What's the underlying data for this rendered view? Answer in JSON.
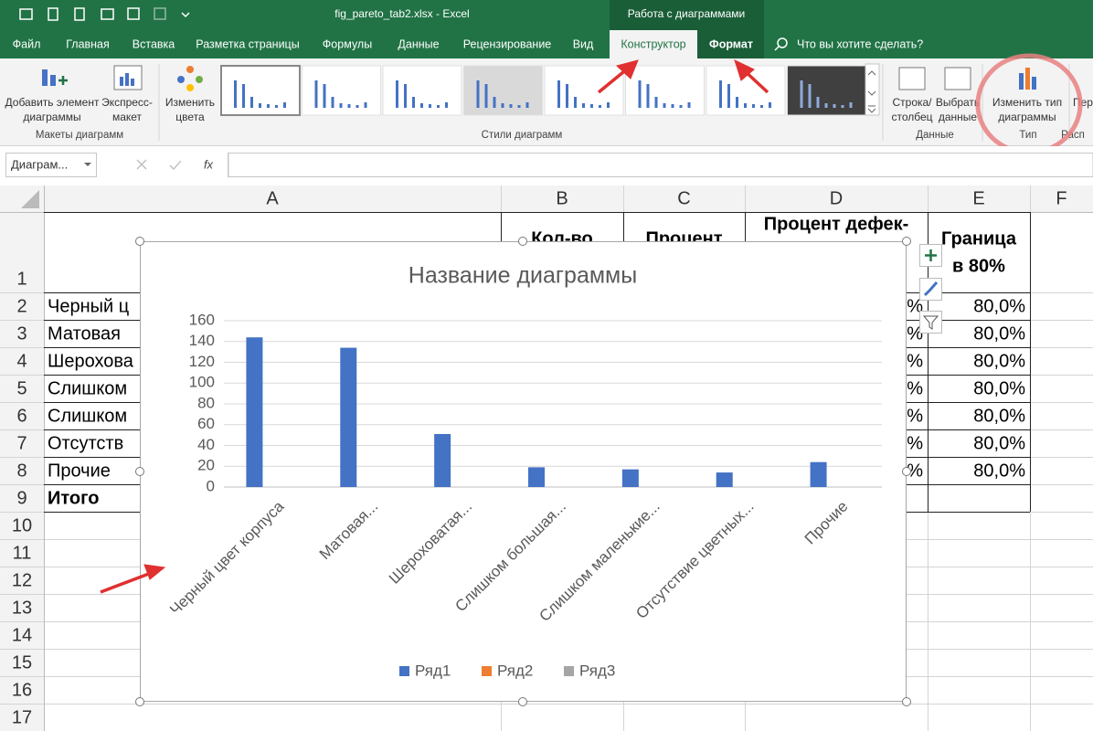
{
  "title_bar": {
    "title": "fig_pareto_tab2.xlsx  -  Excel",
    "context_tab": "Работа с диаграммами"
  },
  "tabs": [
    "Файл",
    "Главная",
    "Вставка",
    "Разметка страницы",
    "Формулы",
    "Данные",
    "Рецензирование",
    "Вид",
    "Конструктор",
    "Формат"
  ],
  "search": "Что вы хотите сделать?",
  "ribbon": {
    "groups": [
      {
        "label": "Макеты диаграмм",
        "buttons": [
          [
            "Добавить элемент",
            "диаграммы"
          ],
          [
            "Экспресс-",
            "макет"
          ]
        ]
      },
      {
        "label": "Стили диаграмм",
        "buttons": [
          [
            "Изменить",
            "цвета"
          ]
        ]
      },
      {
        "label": "Данные",
        "buttons": [
          [
            "Строка/",
            "столбец"
          ],
          [
            "Выбрать",
            "данные"
          ]
        ]
      },
      {
        "label": "Тип",
        "buttons": [
          [
            "Изменить тип",
            "диаграммы"
          ]
        ]
      },
      {
        "label": "Расп",
        "buttons": [
          [
            "Пер"
          ]
        ]
      }
    ]
  },
  "formula_bar": {
    "name_box": "Диаграм...",
    "fx": "fx"
  },
  "sheet": {
    "columns": [
      "A",
      "B",
      "C",
      "D",
      "E",
      "F"
    ],
    "rows": [
      1,
      2,
      3,
      4,
      5,
      6,
      7,
      8,
      9,
      10,
      11,
      12,
      13,
      14,
      15,
      16,
      17
    ],
    "cells": {
      "B1": "Кол-во",
      "C1": "Процент",
      "D1": "Процент дефек-",
      "E1": [
        "Граница",
        "в 80%"
      ],
      "A2": "Черный ц",
      "A3": "Матовая",
      "A4": "Шерохова",
      "A5": "Слишком",
      "A6": "Слишком",
      "A7": "Отсутств",
      "A8": "Прочие",
      "A9": "Итого",
      "D2": "%",
      "D3": "%",
      "D4": "%",
      "D5": "%",
      "D6": "%",
      "D7": "%",
      "D8": "%",
      "E2": "80,0%",
      "E3": "80,0%",
      "E4": "80,0%",
      "E5": "80,0%",
      "E6": "80,0%",
      "E7": "80,0%",
      "E8": "80,0%"
    },
    "bold_cells": [
      "B1",
      "C1",
      "D1",
      "E1",
      "A9"
    ]
  },
  "chart_data": {
    "type": "bar",
    "title": "Название диаграммы",
    "categories": [
      "Черный цвет корпуса",
      "Матовая...",
      "Шероховатая...",
      "Слишком большая...",
      "Слишком маленькие...",
      "Отсутствие цветных...",
      "Прочие"
    ],
    "series": [
      {
        "name": "Ряд1",
        "color": "#4472c4",
        "values": [
          144,
          134,
          51,
          19,
          17,
          14,
          24
        ]
      },
      {
        "name": "Ряд2",
        "color": "#ed7d31",
        "values": [
          null,
          null,
          null,
          null,
          null,
          null,
          null
        ]
      },
      {
        "name": "Ряд3",
        "color": "#a5a5a5",
        "values": [
          null,
          null,
          null,
          null,
          null,
          null,
          null
        ]
      }
    ],
    "ylim": [
      0,
      160
    ],
    "yticks": [
      0,
      20,
      40,
      60,
      80,
      100,
      120,
      140,
      160
    ],
    "grid": true,
    "legend": "bottom"
  }
}
